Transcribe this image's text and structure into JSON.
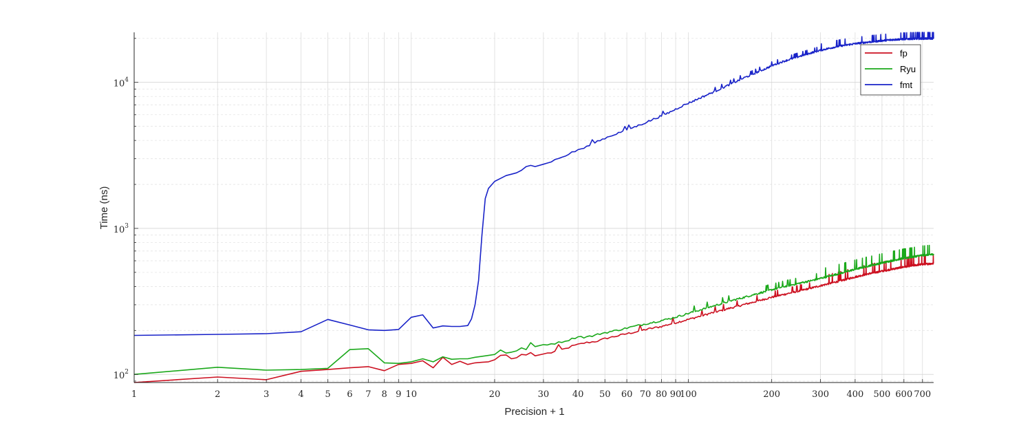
{
  "chart_data": {
    "type": "line",
    "xlabel": "Precision + 1",
    "ylabel": "Time (ns)",
    "xscale": "log",
    "yscale": "log",
    "xlim": [
      1,
      768
    ],
    "ylim": [
      88,
      22000
    ],
    "grid": true,
    "minor_grid": true,
    "legend_position": "top-right",
    "x_tick_labels": [
      "1",
      "2",
      "3",
      "4",
      "5",
      "6",
      "7",
      "8",
      "9",
      "10",
      "20",
      "30",
      "40",
      "50",
      "60",
      "70",
      "80",
      "90",
      "100",
      "200",
      "300",
      "400",
      "500",
      "600",
      "700"
    ],
    "y_tick_labels": [
      {
        "value": 100,
        "base": "10",
        "exp": "2"
      },
      {
        "value": 1000,
        "base": "10",
        "exp": "3"
      },
      {
        "value": 10000,
        "base": "10",
        "exp": "4"
      }
    ],
    "series": [
      {
        "name": "fp",
        "color": "#cc1020",
        "points": [
          [
            1,
            88
          ],
          [
            2,
            96
          ],
          [
            3,
            92
          ],
          [
            4,
            105
          ],
          [
            5,
            108
          ],
          [
            6,
            111
          ],
          [
            7,
            113
          ],
          [
            8,
            106
          ],
          [
            9,
            117
          ],
          [
            10,
            119
          ],
          [
            11,
            124
          ],
          [
            12,
            111
          ],
          [
            13,
            131
          ],
          [
            14,
            117
          ],
          [
            15,
            123
          ],
          [
            16,
            117
          ],
          [
            17,
            120
          ],
          [
            18,
            121
          ],
          [
            19,
            122
          ],
          [
            20,
            126
          ],
          [
            21,
            135
          ],
          [
            22,
            136
          ],
          [
            23,
            128
          ],
          [
            24,
            130
          ],
          [
            25,
            137
          ],
          [
            26,
            136
          ],
          [
            27,
            141
          ],
          [
            28,
            134
          ],
          [
            30,
            138
          ],
          [
            32,
            141
          ],
          [
            34,
            146
          ],
          [
            36,
            150
          ],
          [
            38,
            156
          ],
          [
            40,
            160
          ],
          [
            42,
            164
          ],
          [
            44,
            166
          ],
          [
            46,
            168
          ],
          [
            48,
            171
          ],
          [
            50,
            176
          ],
          [
            55,
            183
          ],
          [
            60,
            190
          ],
          [
            65,
            196
          ],
          [
            70,
            203
          ],
          [
            75,
            208
          ],
          [
            80,
            213
          ],
          [
            85,
            220
          ],
          [
            90,
            226
          ],
          [
            95,
            232
          ],
          [
            100,
            238
          ],
          [
            110,
            250
          ],
          [
            120,
            262
          ],
          [
            130,
            272
          ],
          [
            140,
            283
          ],
          [
            150,
            292
          ],
          [
            160,
            302
          ],
          [
            170,
            311
          ],
          [
            180,
            320
          ],
          [
            190,
            329
          ],
          [
            200,
            338
          ],
          [
            220,
            352
          ],
          [
            250,
            372
          ],
          [
            280,
            392
          ],
          [
            300,
            405
          ],
          [
            350,
            435
          ],
          [
            400,
            465
          ],
          [
            450,
            490
          ],
          [
            500,
            510
          ],
          [
            550,
            528
          ],
          [
            600,
            545
          ],
          [
            650,
            558
          ],
          [
            700,
            568
          ],
          [
            768,
            575
          ]
        ]
      },
      {
        "name": "Ryu",
        "color": "#1aa81a",
        "points": [
          [
            1,
            100
          ],
          [
            2,
            112
          ],
          [
            3,
            107
          ],
          [
            4,
            108
          ],
          [
            5,
            110
          ],
          [
            6,
            148
          ],
          [
            7,
            150
          ],
          [
            8,
            120
          ],
          [
            9,
            119
          ],
          [
            10,
            122
          ],
          [
            11,
            128
          ],
          [
            12,
            122
          ],
          [
            13,
            132
          ],
          [
            14,
            127
          ],
          [
            15,
            128
          ],
          [
            16,
            128
          ],
          [
            17,
            131
          ],
          [
            18,
            133
          ],
          [
            19,
            135
          ],
          [
            20,
            137
          ],
          [
            21,
            147
          ],
          [
            22,
            140
          ],
          [
            23,
            142
          ],
          [
            24,
            145
          ],
          [
            25,
            152
          ],
          [
            26,
            148
          ],
          [
            27,
            165
          ],
          [
            28,
            155
          ],
          [
            30,
            160
          ],
          [
            32,
            162
          ],
          [
            34,
            165
          ],
          [
            36,
            170
          ],
          [
            38,
            175
          ],
          [
            40,
            182
          ],
          [
            42,
            180
          ],
          [
            44,
            182
          ],
          [
            46,
            185
          ],
          [
            48,
            190
          ],
          [
            50,
            193
          ],
          [
            55,
            200
          ],
          [
            60,
            208
          ],
          [
            65,
            215
          ],
          [
            70,
            222
          ],
          [
            75,
            228
          ],
          [
            80,
            234
          ],
          [
            85,
            240
          ],
          [
            90,
            247
          ],
          [
            95,
            254
          ],
          [
            100,
            262
          ],
          [
            110,
            276
          ],
          [
            120,
            290
          ],
          [
            130,
            303
          ],
          [
            140,
            316
          ],
          [
            150,
            328
          ],
          [
            160,
            338
          ],
          [
            170,
            350
          ],
          [
            180,
            360
          ],
          [
            190,
            370
          ],
          [
            200,
            380
          ],
          [
            220,
            398
          ],
          [
            250,
            420
          ],
          [
            280,
            440
          ],
          [
            300,
            455
          ],
          [
            350,
            490
          ],
          [
            400,
            525
          ],
          [
            450,
            555
          ],
          [
            500,
            580
          ],
          [
            550,
            605
          ],
          [
            600,
            625
          ],
          [
            650,
            640
          ],
          [
            700,
            655
          ],
          [
            768,
            665
          ]
        ]
      },
      {
        "name": "fmt",
        "color": "#1822c8",
        "points": [
          [
            1,
            185
          ],
          [
            2,
            188
          ],
          [
            3,
            190
          ],
          [
            4,
            196
          ],
          [
            5,
            238
          ],
          [
            6,
            218
          ],
          [
            7,
            202
          ],
          [
            8,
            200
          ],
          [
            9,
            203
          ],
          [
            10,
            246
          ],
          [
            11,
            256
          ],
          [
            12,
            208
          ],
          [
            13,
            215
          ],
          [
            14,
            213
          ],
          [
            15,
            213
          ],
          [
            16,
            216
          ],
          [
            16.5,
            240
          ],
          [
            17,
            300
          ],
          [
            17.5,
            440
          ],
          [
            18,
            900
          ],
          [
            18.5,
            1600
          ],
          [
            19,
            1880
          ],
          [
            20,
            2100
          ],
          [
            21,
            2200
          ],
          [
            22,
            2300
          ],
          [
            23,
            2350
          ],
          [
            24,
            2400
          ],
          [
            25,
            2500
          ],
          [
            26,
            2650
          ],
          [
            27,
            2700
          ],
          [
            28,
            2650
          ],
          [
            30,
            2750
          ],
          [
            32,
            2880
          ],
          [
            34,
            3000
          ],
          [
            36,
            3150
          ],
          [
            38,
            3300
          ],
          [
            40,
            3450
          ],
          [
            42,
            3550
          ],
          [
            44,
            3700
          ],
          [
            46,
            3900
          ],
          [
            48,
            4000
          ],
          [
            50,
            4150
          ],
          [
            55,
            4450
          ],
          [
            60,
            4750
          ],
          [
            65,
            5000
          ],
          [
            70,
            5300
          ],
          [
            75,
            5600
          ],
          [
            80,
            5900
          ],
          [
            85,
            6200
          ],
          [
            90,
            6550
          ],
          [
            95,
            6900
          ],
          [
            100,
            7200
          ],
          [
            110,
            7800
          ],
          [
            120,
            8400
          ],
          [
            130,
            9000
          ],
          [
            140,
            9600
          ],
          [
            150,
            10200
          ],
          [
            160,
            10800
          ],
          [
            170,
            11300
          ],
          [
            180,
            11900
          ],
          [
            190,
            12400
          ],
          [
            200,
            13000
          ],
          [
            220,
            13900
          ],
          [
            250,
            15000
          ],
          [
            280,
            16000
          ],
          [
            300,
            16600
          ],
          [
            350,
            17700
          ],
          [
            400,
            18400
          ],
          [
            450,
            18900
          ],
          [
            500,
            19300
          ],
          [
            550,
            19600
          ],
          [
            600,
            19800
          ],
          [
            650,
            19900
          ],
          [
            700,
            19950
          ],
          [
            768,
            20000
          ]
        ]
      }
    ]
  }
}
